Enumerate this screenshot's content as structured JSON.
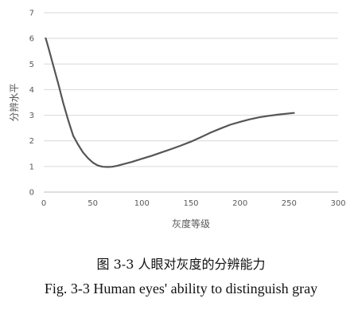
{
  "chart_data": {
    "type": "line",
    "xlabel": "灰度等级",
    "ylabel": "分辨水平",
    "xlim": [
      0,
      300
    ],
    "ylim": [
      0,
      7
    ],
    "xticks": [
      0,
      50,
      100,
      150,
      200,
      250,
      300
    ],
    "yticks": [
      0,
      1,
      2,
      3,
      4,
      5,
      6,
      7
    ],
    "grid": "horizontal",
    "series": [
      {
        "color": "#555555",
        "x": [
          2,
          5,
          10,
          15,
          20,
          25,
          30,
          35,
          40,
          45,
          50,
          55,
          60,
          65,
          70,
          75,
          80,
          90,
          100,
          110,
          120,
          130,
          140,
          150,
          160,
          170,
          180,
          190,
          200,
          210,
          220,
          230,
          240,
          250,
          255
        ],
        "y": [
          6.0,
          5.6,
          4.9,
          4.2,
          3.45,
          2.8,
          2.2,
          1.85,
          1.55,
          1.33,
          1.15,
          1.04,
          0.99,
          0.98,
          0.99,
          1.03,
          1.08,
          1.18,
          1.3,
          1.42,
          1.55,
          1.68,
          1.82,
          1.97,
          2.14,
          2.32,
          2.48,
          2.63,
          2.74,
          2.84,
          2.92,
          2.98,
          3.03,
          3.07,
          3.09
        ]
      }
    ]
  },
  "caption": {
    "cn": "图 3-3  人眼对灰度的分辨能力",
    "en": "Fig. 3-3 Human eyes' ability to distinguish gray"
  }
}
